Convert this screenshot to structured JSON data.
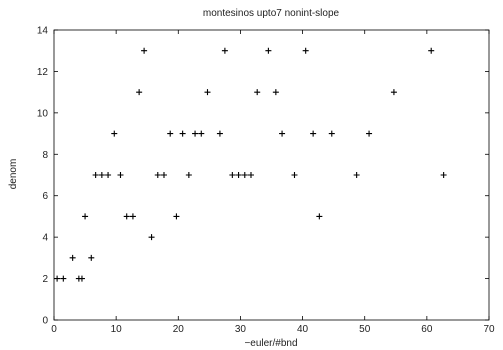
{
  "chart_data": {
    "type": "scatter",
    "title": "montesinos upto7 nonint-slope",
    "xlabel": "−euler/#bnd",
    "ylabel": "denom",
    "xlim": [
      0,
      70
    ],
    "ylim": [
      0,
      14
    ],
    "xticks": [
      0,
      10,
      20,
      30,
      40,
      50,
      60,
      70
    ],
    "yticks": [
      0,
      2,
      4,
      6,
      8,
      10,
      12,
      14
    ],
    "grid": false,
    "marker": "+",
    "marker_color": "#000000",
    "series": [
      {
        "points": [
          [
            0.5,
            2
          ],
          [
            1.5,
            2
          ],
          [
            3,
            3
          ],
          [
            4,
            2
          ],
          [
            4.5,
            2
          ],
          [
            5,
            5
          ],
          [
            6,
            3
          ],
          [
            6.7,
            7
          ],
          [
            7.7,
            7
          ],
          [
            8.7,
            7
          ],
          [
            9.7,
            9
          ],
          [
            10.7,
            7
          ],
          [
            11.7,
            5
          ],
          [
            12.7,
            5
          ],
          [
            13.7,
            11
          ],
          [
            14.5,
            13
          ],
          [
            15.7,
            4
          ],
          [
            16.7,
            7
          ],
          [
            17.7,
            7
          ],
          [
            18.7,
            9
          ],
          [
            19.7,
            5
          ],
          [
            20.7,
            9
          ],
          [
            21.7,
            7
          ],
          [
            22.7,
            9
          ],
          [
            23.7,
            9
          ],
          [
            24.7,
            11
          ],
          [
            26.7,
            9
          ],
          [
            27.5,
            13
          ],
          [
            28.7,
            7
          ],
          [
            29.7,
            7
          ],
          [
            30.7,
            7
          ],
          [
            31.7,
            7
          ],
          [
            32.7,
            11
          ],
          [
            34.5,
            13
          ],
          [
            35.7,
            11
          ],
          [
            36.7,
            9
          ],
          [
            38.7,
            7
          ],
          [
            40.5,
            13
          ],
          [
            41.7,
            9
          ],
          [
            42.7,
            5
          ],
          [
            44.7,
            9
          ],
          [
            48.7,
            7
          ],
          [
            50.7,
            9
          ],
          [
            54.7,
            11
          ],
          [
            60.7,
            13
          ],
          [
            62.7,
            7
          ]
        ]
      }
    ]
  }
}
